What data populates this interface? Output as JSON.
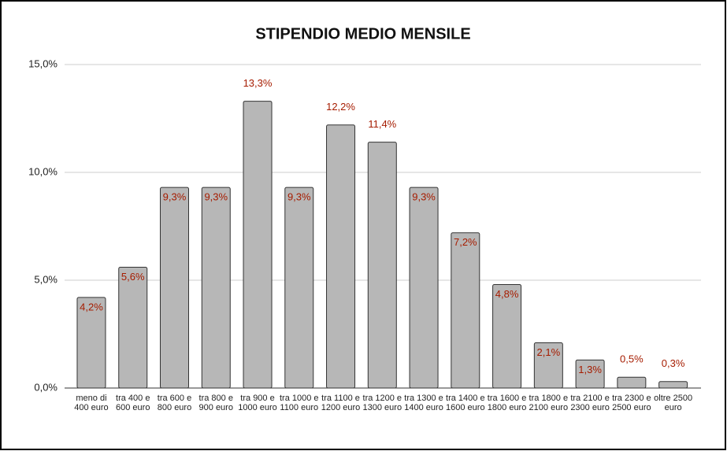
{
  "chart_data": {
    "type": "bar",
    "title": "STIPENDIO MEDIO MENSILE",
    "categories": [
      "meno di 400 euro",
      "tra 400 e 600 euro",
      "tra 600 e 800 euro",
      "tra 800 e 900 euro",
      "tra 900 e 1000 euro",
      "tra 1000 e 1100 euro",
      "tra 1100 e 1200 euro",
      "tra 1200 e 1300 euro",
      "tra 1300 e 1400 euro",
      "tra 1400 e 1600 euro",
      "tra 1600 e 1800 euro",
      "tra 1800 e 2100 euro",
      "tra 2100 e 2300 euro",
      "tra 2300 e 2500 euro",
      "oltre 2500 euro"
    ],
    "values": [
      4.2,
      5.6,
      9.3,
      9.3,
      13.3,
      9.3,
      12.2,
      11.4,
      9.3,
      7.2,
      4.8,
      2.1,
      1.3,
      0.5,
      0.3
    ],
    "value_labels": [
      "4,2%",
      "5,6%",
      "9,3%",
      "9,3%",
      "13,3%",
      "9,3%",
      "12,2%",
      "11,4%",
      "9,3%",
      "7,2%",
      "4,8%",
      "2,1%",
      "1,3%",
      "0,5%",
      "0,3%"
    ],
    "color": "#b7b7b7",
    "label_color": "#a61c00",
    "ylim": [
      0,
      15
    ],
    "yticks": [
      {
        "value": 0,
        "label": "0,0%"
      },
      {
        "value": 5,
        "label": "5,0%"
      },
      {
        "value": 10,
        "label": "10,0%"
      },
      {
        "value": 15,
        "label": "15,0%"
      }
    ],
    "grid": true
  }
}
